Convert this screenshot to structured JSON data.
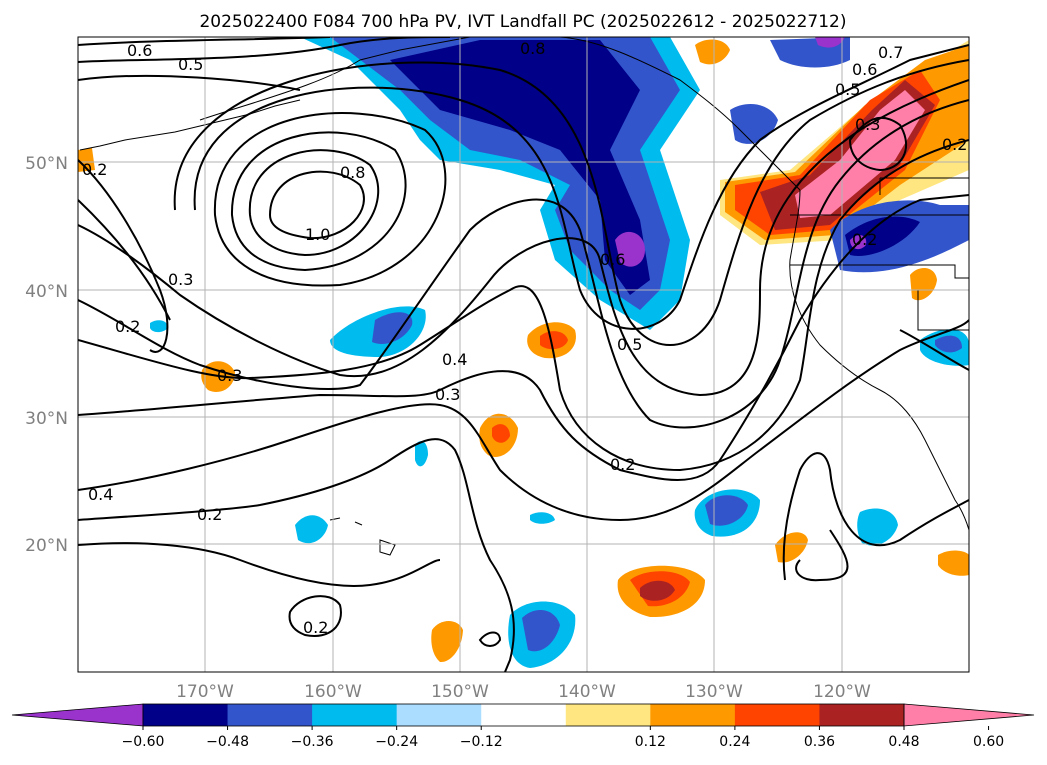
{
  "title": "2025022400 F084 700 hPa PV, IVT Landfall PC (2025022612 - 2025022712)",
  "map": {
    "lat_labels": [
      "50°N",
      "40°N",
      "30°N",
      "20°N"
    ],
    "lon_labels": [
      "170°W",
      "160°W",
      "150°W",
      "140°W",
      "130°W",
      "120°W"
    ],
    "gridlines": true
  },
  "contour_labels": [
    "0.6",
    "0.5",
    "0.8",
    "0.8",
    "1.0",
    "0.3",
    "0.2",
    "0.3",
    "0.4",
    "0.3",
    "0.6",
    "0.5",
    "0.2",
    "0.4",
    "0.2",
    "0.2",
    "0.7",
    "0.6",
    "0.5",
    "0.3",
    "0.2",
    "0.2",
    "0.2"
  ],
  "colorbar": {
    "ticks": [
      "−0.60",
      "−0.48",
      "−0.36",
      "−0.24",
      "−0.12",
      "0.12",
      "0.24",
      "0.36",
      "0.48",
      "0.60"
    ],
    "colors": [
      "#9933cc",
      "#000088",
      "#3355cc",
      "#00bbee",
      "#aaddff",
      "#ffffff",
      "#ffe680",
      "#ff9900",
      "#ff4400",
      "#aa2222",
      "#ff7fa8"
    ]
  }
}
